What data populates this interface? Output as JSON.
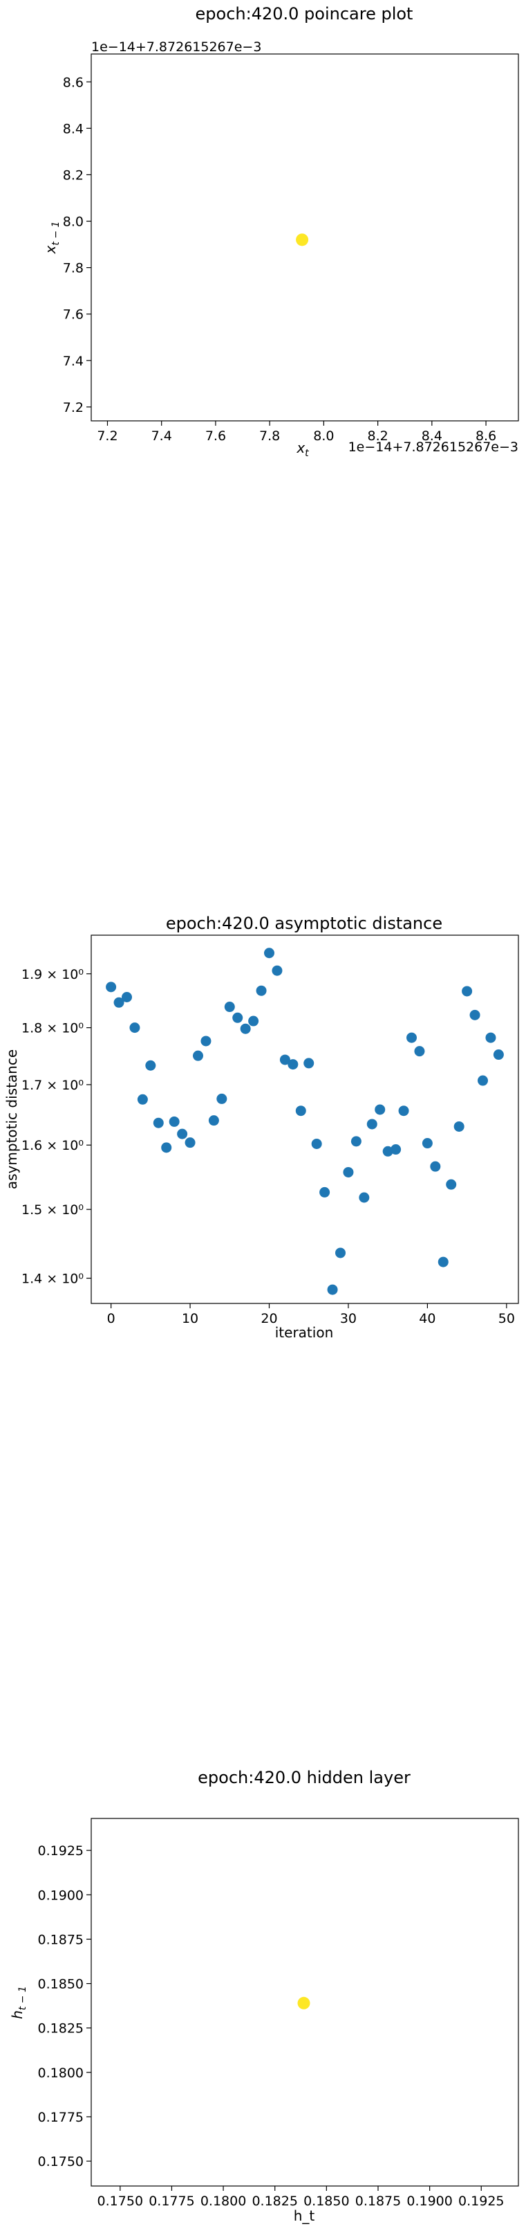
{
  "chart_data": [
    {
      "type": "scatter",
      "title": "epoch:420.0 poincare plot",
      "xlabel": "x",
      "xlabel_sub": "t",
      "ylabel": "x",
      "ylabel_sub": "t − 1",
      "x_offset_text": "1e−14+7.872615267e−3",
      "y_offset_text": "1e−14+7.872615267e−3",
      "xlim": [
        7.14,
        8.72
      ],
      "ylim": [
        7.14,
        8.72
      ],
      "xticks": [
        7.2,
        7.4,
        7.6,
        7.8,
        8.0,
        8.2,
        8.4,
        8.6
      ],
      "xtick_labels": [
        "7.2",
        "7.4",
        "7.6",
        "7.8",
        "8.0",
        "8.2",
        "8.4",
        "8.6"
      ],
      "yticks": [
        7.2,
        7.4,
        7.6,
        7.8,
        8.0,
        8.2,
        8.4,
        8.6
      ],
      "ytick_labels": [
        "7.2",
        "7.4",
        "7.6",
        "7.8",
        "8.0",
        "8.2",
        "8.4",
        "8.6"
      ],
      "points": [
        {
          "x": 7.92,
          "y": 7.92
        }
      ],
      "marker_color": "#fde725",
      "grid": false
    },
    {
      "type": "scatter",
      "title": "epoch:420.0 asymptotic distance",
      "xlabel": "iteration",
      "ylabel": "asymptotic distance",
      "yscale": "log",
      "xlim": [
        -2.5,
        51.5
      ],
      "ylim": [
        1.365,
        1.975
      ],
      "xticks": [
        0,
        10,
        20,
        30,
        40,
        50
      ],
      "xtick_labels": [
        "0",
        "10",
        "20",
        "30",
        "40",
        "50"
      ],
      "yticks": [
        1.4,
        1.5,
        1.6,
        1.7,
        1.8,
        1.9
      ],
      "ytick_labels": [
        "1.4 × 10⁰",
        "1.5 × 10⁰",
        "1.6 × 10⁰",
        "1.7 × 10⁰",
        "1.8 × 10⁰",
        "1.9 × 10⁰"
      ],
      "x": [
        0,
        1,
        2,
        3,
        4,
        5,
        6,
        7,
        8,
        9,
        10,
        11,
        12,
        13,
        14,
        15,
        16,
        17,
        18,
        19,
        20,
        21,
        22,
        23,
        24,
        25,
        26,
        27,
        28,
        29,
        30,
        31,
        32,
        33,
        34,
        35,
        36,
        37,
        38,
        39,
        40,
        41,
        42,
        43,
        44,
        45,
        46,
        47,
        48,
        49
      ],
      "y": [
        1.875,
        1.846,
        1.856,
        1.8,
        1.675,
        1.733,
        1.636,
        1.596,
        1.638,
        1.618,
        1.604,
        1.75,
        1.776,
        1.64,
        1.676,
        1.838,
        1.818,
        1.798,
        1.812,
        1.868,
        1.94,
        1.906,
        1.743,
        1.735,
        1.656,
        1.737,
        1.602,
        1.526,
        1.384,
        1.436,
        1.557,
        1.606,
        1.518,
        1.634,
        1.658,
        1.59,
        1.593,
        1.656,
        1.782,
        1.758,
        1.603,
        1.566,
        1.423,
        1.538,
        1.63,
        1.867,
        1.823,
        1.707,
        1.782,
        1.752
      ],
      "marker_color": "#1f77b4",
      "grid": false
    },
    {
      "type": "scatter",
      "title": "epoch:420.0 hidden layer",
      "xlabel": "h_t",
      "ylabel": "h",
      "ylabel_sub": "t − 1",
      "xlim": [
        0.1736,
        0.1943
      ],
      "ylim": [
        0.1736,
        0.1943
      ],
      "xticks": [
        0.175,
        0.1775,
        0.18,
        0.1825,
        0.185,
        0.1875,
        0.19,
        0.1925
      ],
      "xtick_labels": [
        "0.1750",
        "0.1775",
        "0.1800",
        "0.1825",
        "0.1850",
        "0.1875",
        "0.1900",
        "0.1925"
      ],
      "yticks": [
        0.175,
        0.1775,
        0.18,
        0.1825,
        0.185,
        0.1875,
        0.19,
        0.1925
      ],
      "ytick_labels": [
        "0.1750",
        "0.1775",
        "0.1800",
        "0.1825",
        "0.1850",
        "0.1875",
        "0.1900",
        "0.1925"
      ],
      "points": [
        {
          "x": 0.1839,
          "y": 0.1839
        }
      ],
      "marker_color": "#fde725",
      "grid": false
    }
  ]
}
